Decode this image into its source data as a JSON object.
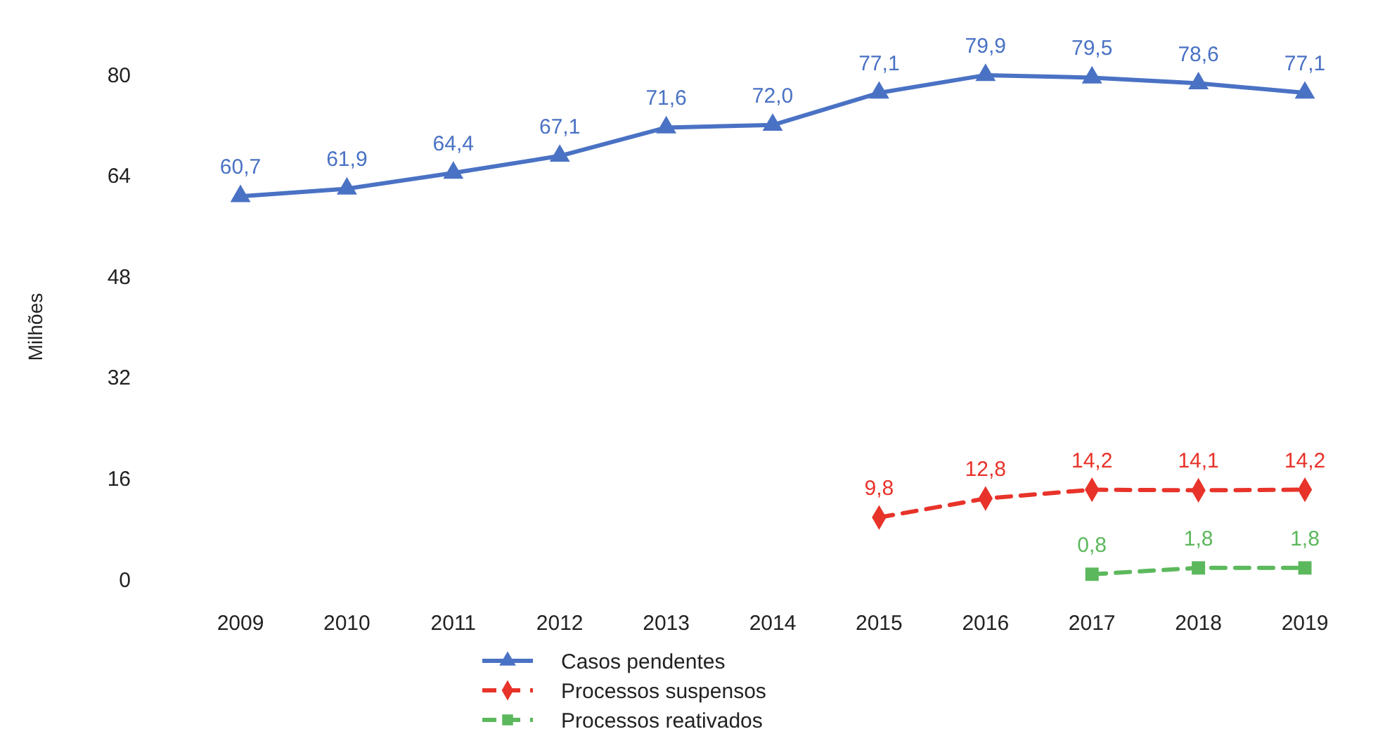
{
  "chart_data": {
    "type": "line",
    "ylabel": "Milhões",
    "categories": [
      "2009",
      "2010",
      "2011",
      "2012",
      "2013",
      "2014",
      "2015",
      "2016",
      "2017",
      "2018",
      "2019"
    ],
    "ylim": [
      0,
      80
    ],
    "yticks": [
      0,
      16,
      32,
      48,
      64,
      80
    ],
    "legend": "bottom",
    "grid": false,
    "series": [
      {
        "name": "Casos pendentes",
        "color": "#4a72c4",
        "marker": "triangle",
        "line_style": "solid",
        "values": [
          60.7,
          61.9,
          64.4,
          67.1,
          71.6,
          72.0,
          77.1,
          79.9,
          79.5,
          78.6,
          77.1
        ],
        "value_labels": [
          "60,7",
          "61,9",
          "64,4",
          "67,1",
          "71,6",
          "72,0",
          "77,1",
          "79,9",
          "79,5",
          "78,6",
          "77,1"
        ]
      },
      {
        "name": "Processos suspensos",
        "color": "#e8332a",
        "marker": "diamond",
        "line_style": "dashed",
        "values": [
          null,
          null,
          null,
          null,
          null,
          null,
          9.8,
          12.8,
          14.2,
          14.1,
          14.2
        ],
        "value_labels": [
          null,
          null,
          null,
          null,
          null,
          null,
          "9,8",
          "12,8",
          "14,2",
          "14,1",
          "14,2"
        ]
      },
      {
        "name": "Processos reativados",
        "color": "#5cb85c",
        "marker": "square",
        "line_style": "dashed",
        "values": [
          null,
          null,
          null,
          null,
          null,
          null,
          null,
          null,
          0.8,
          1.8,
          1.8
        ],
        "value_labels": [
          null,
          null,
          null,
          null,
          null,
          null,
          null,
          null,
          "0,8",
          "1,8",
          "1,8"
        ]
      }
    ]
  }
}
